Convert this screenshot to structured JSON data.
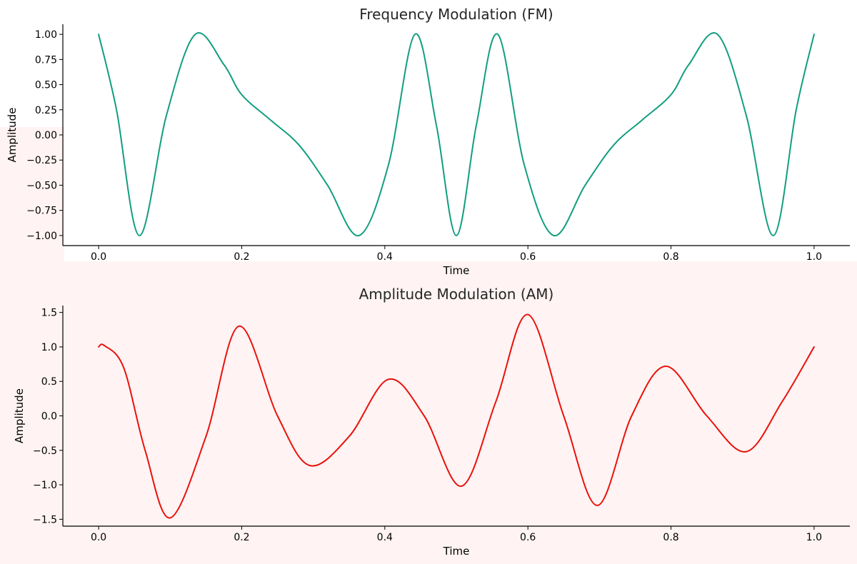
{
  "chart_data": [
    {
      "type": "line",
      "title": "Frequency Modulation (FM)",
      "xlabel": "Time",
      "ylabel": "Amplitude",
      "xlim": [
        -0.05,
        1.05
      ],
      "ylim": [
        -1.1,
        1.1
      ],
      "x_ticks": [
        0.0,
        0.2,
        0.4,
        0.6,
        0.8,
        1.0
      ],
      "x_tick_labels": [
        "0.0",
        "0.2",
        "0.4",
        "0.6",
        "0.8",
        "1.0"
      ],
      "y_ticks": [
        1.0,
        0.75,
        0.5,
        0.25,
        0.0,
        -0.25,
        -0.5,
        -0.75,
        -1.0
      ],
      "y_tick_labels": [
        "1.00",
        "0.75",
        "0.50",
        "0.25",
        "0.00",
        "−0.25",
        "−0.50",
        "−0.75",
        "−1.00"
      ],
      "grid": false,
      "series": [
        {
          "color": "#119e7f",
          "x": [
            0.0,
            0.025,
            0.057,
            0.095,
            0.135,
            0.175,
            0.2,
            0.24,
            0.28,
            0.32,
            0.364,
            0.405,
            0.442,
            0.472,
            0.5,
            0.528,
            0.558,
            0.595,
            0.636,
            0.68,
            0.72,
            0.76,
            0.8,
            0.825,
            0.865,
            0.905,
            0.943,
            0.975,
            1.0
          ],
          "y": [
            1.0,
            0.25,
            -1.0,
            0.2,
            1.0,
            0.7,
            0.4,
            0.15,
            -0.1,
            -0.5,
            -1.0,
            -0.3,
            1.0,
            0.1,
            -1.0,
            0.1,
            1.0,
            -0.3,
            -1.0,
            -0.5,
            -0.1,
            0.15,
            0.4,
            0.7,
            1.0,
            0.2,
            -1.0,
            0.25,
            1.0
          ]
        }
      ]
    },
    {
      "type": "line",
      "title": "Amplitude Modulation (AM)",
      "xlabel": "Time",
      "ylabel": "Amplitude",
      "xlim": [
        -0.05,
        1.05
      ],
      "ylim": [
        -1.6,
        1.6
      ],
      "x_ticks": [
        0.0,
        0.2,
        0.4,
        0.6,
        0.8,
        1.0
      ],
      "x_tick_labels": [
        "0.0",
        "0.2",
        "0.4",
        "0.6",
        "0.8",
        "1.0"
      ],
      "y_ticks": [
        1.5,
        1.0,
        0.5,
        0.0,
        -0.5,
        -1.0,
        -1.5
      ],
      "y_tick_labels": [
        "1.5",
        "1.0",
        "0.5",
        "0.0",
        "−0.5",
        "−1.0",
        "−1.5"
      ],
      "grid": false,
      "series": [
        {
          "color": "#e8120c",
          "x": [
            0.0,
            0.008,
            0.035,
            0.065,
            0.1,
            0.15,
            0.196,
            0.25,
            0.295,
            0.35,
            0.405,
            0.455,
            0.507,
            0.555,
            0.6,
            0.65,
            0.697,
            0.745,
            0.793,
            0.85,
            0.905,
            0.955,
            1.0
          ],
          "y": [
            1.0,
            1.02,
            0.7,
            -0.5,
            -1.48,
            -0.3,
            1.3,
            0.0,
            -0.72,
            -0.3,
            0.53,
            0.0,
            -1.02,
            0.2,
            1.47,
            0.0,
            -1.3,
            0.0,
            0.72,
            0.0,
            -0.52,
            0.2,
            1.0
          ]
        }
      ]
    }
  ]
}
